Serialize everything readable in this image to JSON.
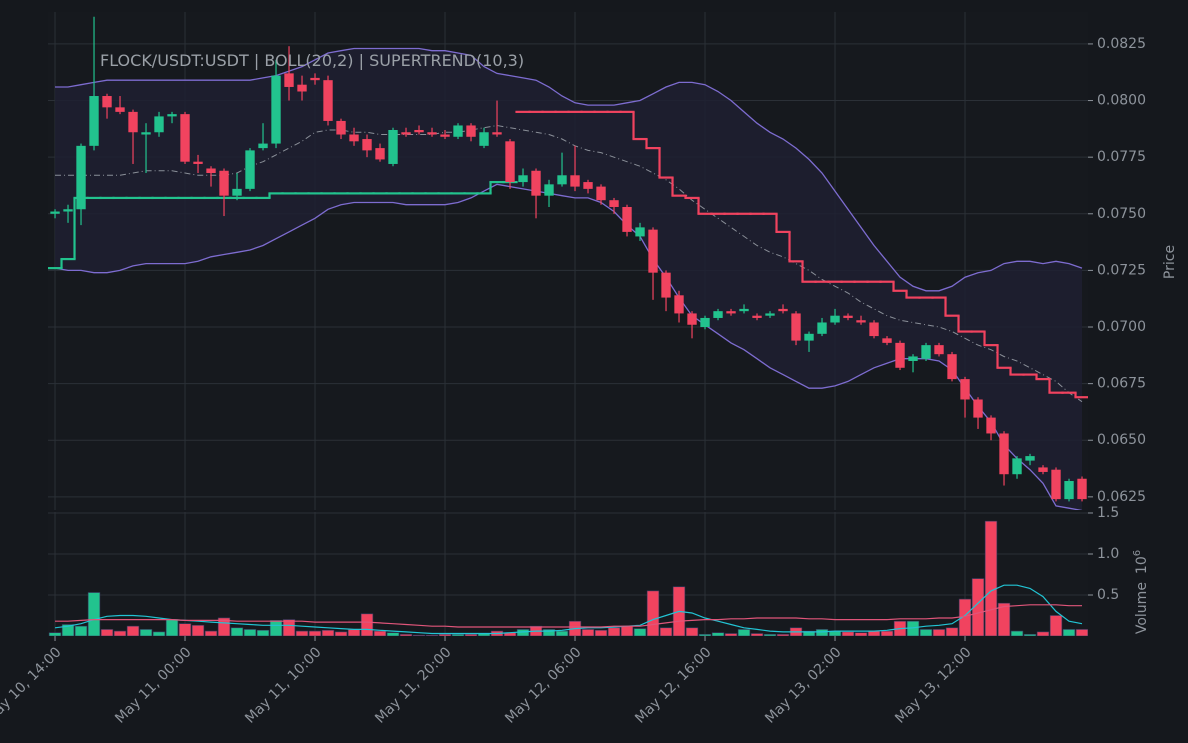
{
  "chart_data": {
    "type": "candlestick",
    "title": "FLOCK/USDT:USDT | BOLL(20,2) | SUPERTREND(10,3)",
    "ylabel": "Price",
    "up_color": "#22c38e",
    "down_color": "#f1435f",
    "grid": true,
    "xlim": [
      -0.54,
      79.46
    ],
    "xticks": [
      {
        "value": 0,
        "label": "May 10, 14:00"
      },
      {
        "value": 10,
        "label": "May 11, 00:00"
      },
      {
        "value": 20,
        "label": "May 11, 10:00"
      },
      {
        "value": 30,
        "label": "May 11, 20:00"
      },
      {
        "value": 40,
        "label": "May 12, 06:00"
      },
      {
        "value": 50,
        "label": "May 12, 16:00"
      },
      {
        "value": 60,
        "label": "May 13, 02:00"
      },
      {
        "value": 70,
        "label": "May 13, 12:00"
      }
    ],
    "ylim": [
      0.06192,
      0.08391
    ],
    "yticks": [
      0.0625,
      {
        "value": 0.065,
        "label": "0.0650"
      },
      0.0675,
      {
        "value": 0.07,
        "label": "0.0700"
      },
      0.0725,
      {
        "value": 0.075,
        "label": "0.0750"
      },
      0.0775,
      {
        "value": 0.08,
        "label": "0.0800"
      },
      0.0825
    ],
    "open": [
      0.075,
      0.0751,
      0.0752,
      0.078,
      0.0802,
      0.0797,
      0.0795,
      0.0785,
      0.0786,
      0.0793,
      0.0794,
      0.0773,
      0.077,
      0.0769,
      0.0758,
      0.0761,
      0.0779,
      0.0781,
      0.0812,
      0.0807,
      0.081,
      0.0809,
      0.0791,
      0.0785,
      0.0783,
      0.0779,
      0.0772,
      0.0786,
      0.0787,
      0.0786,
      0.0785,
      0.0784,
      0.0789,
      0.078,
      0.0786,
      0.0782,
      0.0764,
      0.0769,
      0.0758,
      0.0763,
      0.0767,
      0.0764,
      0.0762,
      0.0756,
      0.0753,
      0.074,
      0.0743,
      0.0724,
      0.0714,
      0.0706,
      0.07,
      0.0704,
      0.0707,
      0.0707,
      0.0705,
      0.0705,
      0.0708,
      0.0706,
      0.0694,
      0.0697,
      0.0702,
      0.0705,
      0.0703,
      0.0702,
      0.0695,
      0.0693,
      0.0685,
      0.0686,
      0.0692,
      0.0688,
      0.0677,
      0.0668,
      0.066,
      0.0653,
      0.0635,
      0.0641,
      0.0638,
      0.0637,
      0.0624,
      0.0633
    ],
    "high": [
      0.0752,
      0.0754,
      0.0781,
      0.0837,
      0.0803,
      0.0802,
      0.0796,
      0.079,
      0.0795,
      0.0795,
      0.0795,
      0.0776,
      0.0771,
      0.077,
      0.0768,
      0.0779,
      0.079,
      0.0818,
      0.0824,
      0.0811,
      0.0812,
      0.0811,
      0.0792,
      0.0788,
      0.0785,
      0.0781,
      0.0788,
      0.0788,
      0.0789,
      0.0788,
      0.0787,
      0.079,
      0.079,
      0.0788,
      0.08,
      0.0783,
      0.077,
      0.077,
      0.0765,
      0.0777,
      0.078,
      0.0765,
      0.0763,
      0.0757,
      0.0754,
      0.0746,
      0.0744,
      0.0725,
      0.0716,
      0.0707,
      0.0705,
      0.0708,
      0.0708,
      0.071,
      0.0706,
      0.0707,
      0.071,
      0.0707,
      0.0698,
      0.0704,
      0.0708,
      0.0706,
      0.0705,
      0.0703,
      0.0696,
      0.0694,
      0.0688,
      0.0693,
      0.0693,
      0.0689,
      0.0678,
      0.0669,
      0.0661,
      0.0654,
      0.0643,
      0.0644,
      0.0639,
      0.0638,
      0.0633,
      0.0634
    ],
    "low": [
      0.0748,
      0.0746,
      0.0745,
      0.0778,
      0.0792,
      0.0794,
      0.0772,
      0.0768,
      0.0784,
      0.079,
      0.0772,
      0.0768,
      0.0762,
      0.0749,
      0.0756,
      0.076,
      0.0778,
      0.0779,
      0.08,
      0.08,
      0.0807,
      0.0789,
      0.0783,
      0.078,
      0.0775,
      0.0773,
      0.0771,
      0.0784,
      0.0785,
      0.0784,
      0.0783,
      0.0783,
      0.0782,
      0.0779,
      0.0784,
      0.0761,
      0.0762,
      0.0748,
      0.0753,
      0.0762,
      0.076,
      0.0759,
      0.0754,
      0.075,
      0.074,
      0.0738,
      0.0712,
      0.0707,
      0.0702,
      0.0695,
      0.0699,
      0.0703,
      0.0705,
      0.0706,
      0.0703,
      0.0704,
      0.0706,
      0.0692,
      0.0689,
      0.0696,
      0.0701,
      0.0703,
      0.0701,
      0.0695,
      0.0692,
      0.0681,
      0.068,
      0.0685,
      0.0687,
      0.0676,
      0.066,
      0.0655,
      0.065,
      0.063,
      0.0633,
      0.0639,
      0.0635,
      0.0623,
      0.0623,
      0.0623
    ],
    "close": [
      0.0751,
      0.0752,
      0.078,
      0.0802,
      0.0797,
      0.0795,
      0.0786,
      0.0786,
      0.0793,
      0.0794,
      0.0773,
      0.0772,
      0.0768,
      0.0758,
      0.0761,
      0.0778,
      0.0781,
      0.0811,
      0.0806,
      0.0804,
      0.0809,
      0.0791,
      0.0785,
      0.0782,
      0.0778,
      0.0774,
      0.0787,
      0.0785,
      0.0786,
      0.0785,
      0.0784,
      0.0789,
      0.0784,
      0.0786,
      0.0785,
      0.0764,
      0.0767,
      0.0758,
      0.0763,
      0.0767,
      0.0762,
      0.0761,
      0.0756,
      0.0753,
      0.0742,
      0.0744,
      0.0724,
      0.0713,
      0.0706,
      0.0701,
      0.0704,
      0.0707,
      0.0706,
      0.0708,
      0.0704,
      0.0706,
      0.0707,
      0.0694,
      0.0697,
      0.0702,
      0.0705,
      0.0704,
      0.0702,
      0.0696,
      0.0693,
      0.0682,
      0.0687,
      0.0692,
      0.0688,
      0.0677,
      0.0668,
      0.066,
      0.0653,
      0.0635,
      0.0642,
      0.0643,
      0.0636,
      0.0624,
      0.0632,
      0.0624
    ],
    "bollinger": {
      "color": "#7d6cd0",
      "middle_color": "#8a8f98",
      "fill": "#1e2031",
      "upper": [
        0.0806,
        0.0806,
        0.0807,
        0.0808,
        0.0809,
        0.0809,
        0.0809,
        0.0809,
        0.0809,
        0.0809,
        0.0809,
        0.0809,
        0.0809,
        0.0809,
        0.0809,
        0.0809,
        0.081,
        0.0811,
        0.0813,
        0.0815,
        0.0818,
        0.0821,
        0.0822,
        0.0823,
        0.0823,
        0.0823,
        0.0823,
        0.0823,
        0.0823,
        0.0822,
        0.0822,
        0.0821,
        0.082,
        0.0815,
        0.0812,
        0.0811,
        0.081,
        0.0809,
        0.0806,
        0.0802,
        0.0799,
        0.0798,
        0.0798,
        0.0798,
        0.0799,
        0.08,
        0.0803,
        0.0806,
        0.0808,
        0.0808,
        0.0807,
        0.0804,
        0.08,
        0.0795,
        0.079,
        0.0786,
        0.0783,
        0.0779,
        0.0774,
        0.0768,
        0.076,
        0.0752,
        0.0744,
        0.0736,
        0.0729,
        0.0722,
        0.0718,
        0.0716,
        0.0716,
        0.0718,
        0.0722,
        0.0724,
        0.0725,
        0.0728,
        0.0729,
        0.0729,
        0.0728,
        0.0729,
        0.0728,
        0.0726
      ],
      "middle": [
        0.0767,
        0.0767,
        0.0767,
        0.0767,
        0.0767,
        0.0767,
        0.0768,
        0.0769,
        0.0769,
        0.0769,
        0.0768,
        0.0767,
        0.0767,
        0.0767,
        0.0768,
        0.0771,
        0.0773,
        0.0776,
        0.0779,
        0.0782,
        0.0786,
        0.0787,
        0.0787,
        0.0786,
        0.0786,
        0.0785,
        0.0785,
        0.0785,
        0.0785,
        0.0785,
        0.0786,
        0.0786,
        0.0787,
        0.0788,
        0.0789,
        0.0788,
        0.0787,
        0.0786,
        0.0785,
        0.0783,
        0.078,
        0.0778,
        0.0777,
        0.0775,
        0.0773,
        0.0771,
        0.0768,
        0.0765,
        0.0761,
        0.0756,
        0.0752,
        0.0748,
        0.0744,
        0.074,
        0.0736,
        0.0733,
        0.0731,
        0.0728,
        0.0725,
        0.0721,
        0.0718,
        0.0715,
        0.0711,
        0.0708,
        0.0705,
        0.0703,
        0.0702,
        0.0701,
        0.07,
        0.0698,
        0.0695,
        0.0692,
        0.069,
        0.0687,
        0.0685,
        0.0682,
        0.0679,
        0.0676,
        0.0671,
        0.0667
      ],
      "lower": [
        0.0726,
        0.0725,
        0.0725,
        0.0724,
        0.0724,
        0.0725,
        0.0727,
        0.0728,
        0.0728,
        0.0728,
        0.0728,
        0.0729,
        0.0731,
        0.0732,
        0.0733,
        0.0734,
        0.0736,
        0.0739,
        0.0742,
        0.0745,
        0.0748,
        0.0752,
        0.0754,
        0.0755,
        0.0755,
        0.0755,
        0.0755,
        0.0754,
        0.0754,
        0.0754,
        0.0754,
        0.0755,
        0.0757,
        0.076,
        0.0763,
        0.0762,
        0.0761,
        0.076,
        0.0759,
        0.0758,
        0.0757,
        0.0757,
        0.0755,
        0.0751,
        0.0745,
        0.074,
        0.073,
        0.0722,
        0.0713,
        0.0705,
        0.0701,
        0.0697,
        0.0693,
        0.069,
        0.0686,
        0.0682,
        0.0679,
        0.0676,
        0.0673,
        0.0673,
        0.0674,
        0.0676,
        0.0679,
        0.0682,
        0.0684,
        0.0686,
        0.0686,
        0.0686,
        0.0685,
        0.0681,
        0.0673,
        0.0665,
        0.0658,
        0.0648,
        0.0642,
        0.0637,
        0.0631,
        0.0621,
        0.062,
        0.0619
      ]
    },
    "supertrend": [
      {
        "color": "#22c38e",
        "values": [
          0.0726,
          0.073,
          0.0757,
          0.0757,
          0.0757,
          0.0757,
          0.0757,
          0.0757,
          0.0757,
          0.0757,
          0.0757,
          0.0757,
          0.0757,
          0.0757,
          0.0757,
          0.0757,
          0.0757,
          0.0759,
          0.0759,
          0.0759,
          0.0759,
          0.0759,
          0.0759,
          0.0759,
          0.0759,
          0.0759,
          0.0759,
          0.0759,
          0.0759,
          0.0759,
          0.0759,
          0.0759,
          0.0759,
          0.0759,
          0.0764,
          0.0764,
          null,
          null,
          null,
          null,
          null,
          null,
          null,
          null,
          null,
          null,
          null,
          null,
          null,
          null,
          null,
          null,
          null,
          null,
          null,
          null,
          null,
          null,
          null,
          null,
          null,
          null,
          null,
          null,
          null,
          null,
          null,
          null,
          null,
          null,
          null,
          null,
          null,
          null,
          null,
          null,
          null,
          null,
          null,
          null
        ]
      },
      {
        "color": "#f1435f",
        "values": [
          null,
          null,
          null,
          null,
          null,
          null,
          null,
          null,
          null,
          null,
          null,
          null,
          null,
          null,
          null,
          null,
          null,
          null,
          null,
          null,
          null,
          null,
          null,
          null,
          null,
          null,
          null,
          null,
          null,
          null,
          null,
          null,
          null,
          null,
          null,
          null,
          0.0795,
          0.0795,
          0.0795,
          0.0795,
          0.0795,
          0.0795,
          0.0795,
          0.0795,
          0.0795,
          0.0783,
          0.0779,
          0.0766,
          0.0758,
          0.0757,
          0.075,
          0.075,
          0.075,
          0.075,
          0.075,
          0.075,
          0.0742,
          0.0729,
          0.072,
          0.072,
          0.072,
          0.072,
          0.072,
          0.072,
          0.072,
          0.0716,
          0.0713,
          0.0713,
          0.0713,
          0.0705,
          0.0698,
          0.0698,
          0.0692,
          0.0682,
          0.0679,
          0.0679,
          0.0677,
          0.0671,
          0.0671,
          0.0669
        ]
      }
    ],
    "volume": {
      "label": "Volume",
      "scale_base": "10",
      "scale_exponent": "6",
      "ylim": [
        0,
        1.512
      ],
      "yticks": [
        0.5,
        {
          "value": 1,
          "label": "1.0"
        },
        1.5
      ],
      "values": [
        0.04,
        0.14,
        0.12,
        0.53,
        0.08,
        0.06,
        0.12,
        0.08,
        0.05,
        0.2,
        0.15,
        0.13,
        0.06,
        0.22,
        0.1,
        0.08,
        0.07,
        0.19,
        0.2,
        0.06,
        0.06,
        0.07,
        0.05,
        0.08,
        0.27,
        0.06,
        0.04,
        0.02,
        0.01,
        0.01,
        0.02,
        0.02,
        0.02,
        0.03,
        0.06,
        0.04,
        0.08,
        0.12,
        0.08,
        0.06,
        0.18,
        0.08,
        0.07,
        0.1,
        0.12,
        0.09,
        0.55,
        0.1,
        0.6,
        0.1,
        0.02,
        0.04,
        0.03,
        0.08,
        0.03,
        0.02,
        0.02,
        0.1,
        0.06,
        0.08,
        0.06,
        0.05,
        0.04,
        0.06,
        0.06,
        0.18,
        0.18,
        0.08,
        0.08,
        0.1,
        0.45,
        0.7,
        1.4,
        0.4,
        0.06,
        0.02,
        0.05,
        0.25,
        0.08,
        0.08
      ],
      "averages": [
        {
          "color": "#22c4d4",
          "values": [
            0.1,
            0.12,
            0.15,
            0.2,
            0.24,
            0.25,
            0.25,
            0.24,
            0.22,
            0.2,
            0.19,
            0.18,
            0.17,
            0.16,
            0.15,
            0.14,
            0.13,
            0.13,
            0.13,
            0.12,
            0.11,
            0.1,
            0.09,
            0.08,
            0.08,
            0.07,
            0.06,
            0.05,
            0.04,
            0.03,
            0.03,
            0.03,
            0.03,
            0.03,
            0.03,
            0.04,
            0.05,
            0.06,
            0.06,
            0.07,
            0.09,
            0.1,
            0.1,
            0.11,
            0.12,
            0.13,
            0.2,
            0.25,
            0.3,
            0.28,
            0.22,
            0.18,
            0.14,
            0.1,
            0.08,
            0.06,
            0.05,
            0.05,
            0.05,
            0.05,
            0.06,
            0.06,
            0.06,
            0.06,
            0.07,
            0.09,
            0.1,
            0.12,
            0.13,
            0.15,
            0.25,
            0.4,
            0.55,
            0.62,
            0.62,
            0.58,
            0.48,
            0.3,
            0.18,
            0.15
          ]
        },
        {
          "color": "#e0557a",
          "values": [
            0.18,
            0.18,
            0.19,
            0.2,
            0.2,
            0.2,
            0.2,
            0.2,
            0.2,
            0.2,
            0.19,
            0.19,
            0.19,
            0.19,
            0.18,
            0.18,
            0.18,
            0.18,
            0.18,
            0.18,
            0.17,
            0.17,
            0.17,
            0.17,
            0.17,
            0.16,
            0.15,
            0.14,
            0.13,
            0.12,
            0.12,
            0.11,
            0.11,
            0.11,
            0.11,
            0.11,
            0.11,
            0.11,
            0.11,
            0.11,
            0.11,
            0.11,
            0.11,
            0.12,
            0.12,
            0.12,
            0.14,
            0.16,
            0.18,
            0.19,
            0.2,
            0.2,
            0.21,
            0.21,
            0.22,
            0.22,
            0.22,
            0.22,
            0.21,
            0.21,
            0.2,
            0.2,
            0.2,
            0.2,
            0.2,
            0.21,
            0.21,
            0.21,
            0.22,
            0.22,
            0.24,
            0.28,
            0.32,
            0.36,
            0.37,
            0.38,
            0.38,
            0.38,
            0.37,
            0.37
          ]
        }
      ]
    }
  }
}
